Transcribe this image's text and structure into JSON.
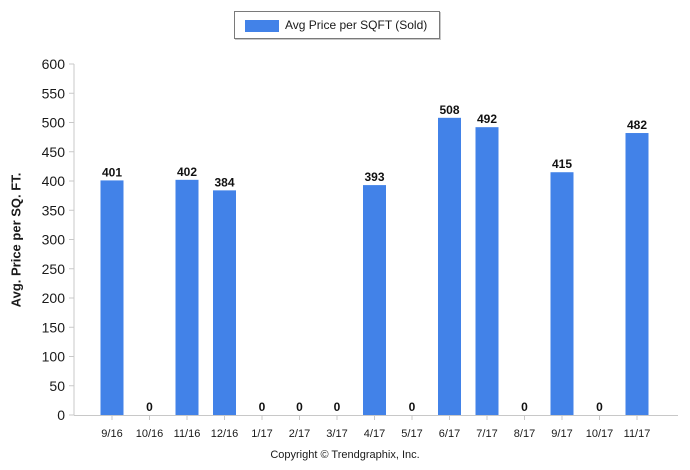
{
  "chart_data": {
    "type": "bar",
    "title": "",
    "legend": {
      "label": "Avg Price per SQFT (Sold)",
      "position": "top"
    },
    "ylabel": "Avg. Price per SQ. FT.",
    "xlabel": "",
    "ylim": [
      0,
      600
    ],
    "yticks": [
      0,
      50,
      100,
      150,
      200,
      250,
      300,
      350,
      400,
      450,
      500,
      550,
      600
    ],
    "grid": false,
    "data_labels": true,
    "categories": [
      "9/16",
      "10/16",
      "11/16",
      "12/16",
      "1/17",
      "2/17",
      "3/17",
      "4/17",
      "5/17",
      "6/17",
      "7/17",
      "8/17",
      "9/17",
      "10/17",
      "11/17"
    ],
    "series": [
      {
        "name": "Avg Price per SQFT (Sold)",
        "color": "#4282e8",
        "values": [
          401,
          0,
          402,
          384,
          0,
          0,
          0,
          393,
          0,
          508,
          492,
          0,
          415,
          0,
          482
        ]
      }
    ]
  },
  "footer": {
    "copyright": "Copyright © Trendgraphix, Inc."
  }
}
